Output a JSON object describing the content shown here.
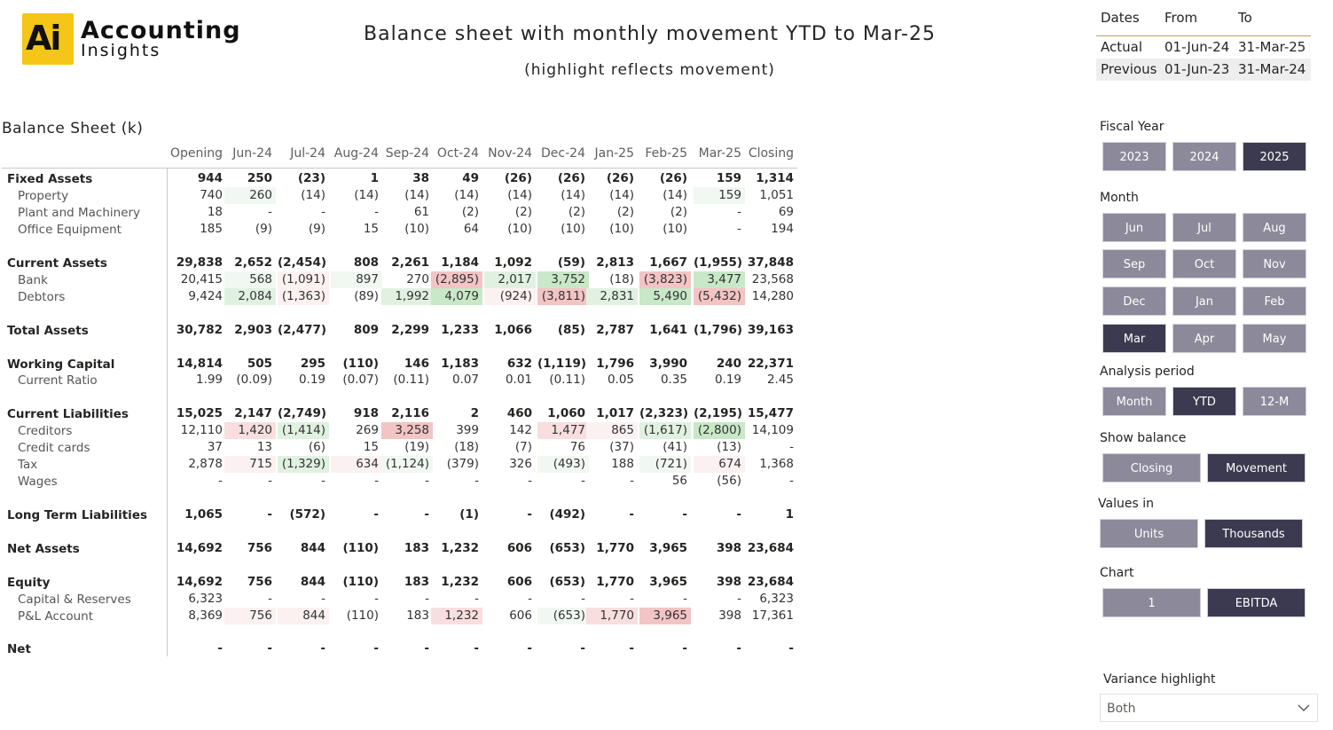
{
  "logo": {
    "mark": "Ai",
    "line1": "Accounting",
    "line2": "Insights"
  },
  "title": "Balance sheet with monthly movement YTD to Mar-25",
  "subtitle": "(highlight reflects movement)",
  "dates": {
    "headers": [
      "Dates",
      "From",
      "To"
    ],
    "rows": [
      [
        "Actual",
        "01-Jun-24",
        "31-Mar-25"
      ],
      [
        "Previous",
        "01-Jun-23",
        "31-Mar-24"
      ]
    ]
  },
  "balance_sheet": {
    "title": "Balance Sheet (k)",
    "columns": [
      "Opening",
      "Jun-24",
      "Jul-24",
      "Aug-24",
      "Sep-24",
      "Oct-24",
      "Nov-24",
      "Dec-24",
      "Jan-25",
      "Feb-25",
      "Mar-25",
      "Closing"
    ],
    "colors": {
      "g1": "#f1f8f1",
      "g2": "#e1f1e1",
      "g3": "#c8e8c8",
      "r1": "#fcf1f1",
      "r2": "#f8dede",
      "r3": "#f3c4c4"
    },
    "rows": [
      {
        "label": "Fixed Assets",
        "bold": true,
        "values": [
          "944",
          "250",
          "(23)",
          "1",
          "38",
          "49",
          "(26)",
          "(26)",
          "(26)",
          "(26)",
          "159",
          "1,314"
        ]
      },
      {
        "label": "Property",
        "values": [
          "740",
          "260",
          "(14)",
          "(14)",
          "(14)",
          "(14)",
          "(14)",
          "(14)",
          "(14)",
          "(14)",
          "159",
          "1,051"
        ],
        "hl": [
          "",
          "g1",
          "",
          "",
          "",
          "",
          "",
          "",
          "",
          "",
          "g1",
          ""
        ]
      },
      {
        "label": "Plant and Machinery",
        "values": [
          "18",
          "-",
          "-",
          "-",
          "61",
          "(2)",
          "(2)",
          "(2)",
          "(2)",
          "(2)",
          "-",
          "69"
        ]
      },
      {
        "label": "Office Equipment",
        "values": [
          "185",
          "(9)",
          "(9)",
          "15",
          "(10)",
          "64",
          "(10)",
          "(10)",
          "(10)",
          "(10)",
          "-",
          "194"
        ]
      },
      {
        "label": "Current Assets",
        "bold": true,
        "values": [
          "29,838",
          "2,652",
          "(2,454)",
          "808",
          "2,261",
          "1,184",
          "1,092",
          "(59)",
          "2,813",
          "1,667",
          "(1,955)",
          "37,848"
        ]
      },
      {
        "label": "Bank",
        "values": [
          "20,415",
          "568",
          "(1,091)",
          "897",
          "270",
          "(2,895)",
          "2,017",
          "3,752",
          "(18)",
          "(3,823)",
          "3,477",
          "23,568"
        ],
        "hl": [
          "",
          "g1",
          "r1",
          "g1",
          "",
          "r3",
          "g2",
          "g3",
          "",
          "r3",
          "g3",
          ""
        ]
      },
      {
        "label": "Debtors",
        "values": [
          "9,424",
          "2,084",
          "(1,363)",
          "(89)",
          "1,992",
          "4,079",
          "(924)",
          "(3,811)",
          "2,831",
          "5,490",
          "(5,432)",
          "14,280"
        ],
        "hl": [
          "",
          "g2",
          "r1",
          "",
          "g2",
          "g3",
          "r1",
          "r3",
          "g2",
          "g3",
          "r3",
          ""
        ]
      },
      {
        "label": "Total Assets",
        "bold": true,
        "values": [
          "30,782",
          "2,903",
          "(2,477)",
          "809",
          "2,299",
          "1,233",
          "1,066",
          "(85)",
          "2,787",
          "1,641",
          "(1,796)",
          "39,163"
        ]
      },
      {
        "label": "Working Capital",
        "bold": true,
        "values": [
          "14,814",
          "505",
          "295",
          "(110)",
          "146",
          "1,183",
          "632",
          "(1,119)",
          "1,796",
          "3,990",
          "240",
          "22,371"
        ]
      },
      {
        "label": "Current Ratio",
        "values": [
          "1.99",
          "(0.09)",
          "0.19",
          "(0.07)",
          "(0.11)",
          "0.07",
          "0.01",
          "(0.11)",
          "0.05",
          "0.35",
          "0.19",
          "2.45"
        ]
      },
      {
        "label": "Current Liabilities",
        "bold": true,
        "values": [
          "15,025",
          "2,147",
          "(2,749)",
          "918",
          "2,116",
          "2",
          "460",
          "1,060",
          "1,017",
          "(2,323)",
          "(2,195)",
          "15,477"
        ]
      },
      {
        "label": "Creditors",
        "values": [
          "12,110",
          "1,420",
          "(1,414)",
          "269",
          "3,258",
          "399",
          "142",
          "1,477",
          "865",
          "(1,617)",
          "(2,800)",
          "14,109"
        ],
        "hl": [
          "",
          "r2",
          "g2",
          "",
          "r3",
          "",
          "",
          "r2",
          "r1",
          "g2",
          "g3",
          ""
        ]
      },
      {
        "label": "Credit cards",
        "values": [
          "37",
          "13",
          "(6)",
          "15",
          "(19)",
          "(18)",
          "(7)",
          "76",
          "(37)",
          "(41)",
          "(13)",
          "-"
        ]
      },
      {
        "label": "Tax",
        "values": [
          "2,878",
          "715",
          "(1,329)",
          "634",
          "(1,124)",
          "(379)",
          "326",
          "(493)",
          "188",
          "(721)",
          "674",
          "1,368"
        ],
        "hl": [
          "",
          "r1",
          "g2",
          "r1",
          "g1",
          "",
          "",
          "g1",
          "",
          "g1",
          "r1",
          ""
        ]
      },
      {
        "label": "Wages",
        "values": [
          "-",
          "-",
          "-",
          "-",
          "-",
          "-",
          "-",
          "-",
          "-",
          "56",
          "(56)",
          "-"
        ]
      },
      {
        "label": "Long Term Liabilities",
        "bold": true,
        "values": [
          "1,065",
          "-",
          "(572)",
          "-",
          "-",
          "(1)",
          "-",
          "(492)",
          "-",
          "-",
          "-",
          "1"
        ]
      },
      {
        "label": "Net Assets",
        "bold": true,
        "values": [
          "14,692",
          "756",
          "844",
          "(110)",
          "183",
          "1,232",
          "606",
          "(653)",
          "1,770",
          "3,965",
          "398",
          "23,684"
        ]
      },
      {
        "label": "Equity",
        "bold": true,
        "values": [
          "14,692",
          "756",
          "844",
          "(110)",
          "183",
          "1,232",
          "606",
          "(653)",
          "1,770",
          "3,965",
          "398",
          "23,684"
        ]
      },
      {
        "label": "Capital & Reserves",
        "values": [
          "6,323",
          "-",
          "-",
          "-",
          "-",
          "-",
          "-",
          "-",
          "-",
          "-",
          "-",
          "6,323"
        ]
      },
      {
        "label": "P&L Account",
        "values": [
          "8,369",
          "756",
          "844",
          "(110)",
          "183",
          "1,232",
          "606",
          "(653)",
          "1,770",
          "3,965",
          "398",
          "17,361"
        ],
        "hl": [
          "",
          "r1",
          "r1",
          "",
          "",
          "r2",
          "",
          "g1",
          "r2",
          "r3",
          "",
          ""
        ]
      },
      {
        "label": "Net",
        "bold": true,
        "values": [
          "-",
          "-",
          "-",
          "-",
          "-",
          "-",
          "-",
          "-",
          "-",
          "-",
          "-",
          "-"
        ]
      }
    ]
  },
  "slicers": {
    "fiscal_year": {
      "title": "Fiscal Year",
      "options": [
        "2023",
        "2024",
        "2025"
      ],
      "selected": "2025"
    },
    "month": {
      "title": "Month",
      "options": [
        "Jun",
        "Jul",
        "Aug",
        "Sep",
        "Oct",
        "Nov",
        "Dec",
        "Jan",
        "Feb",
        "Mar",
        "Apr",
        "May"
      ],
      "selected": "Mar"
    },
    "analysis_period": {
      "title": "Analysis period",
      "options": [
        "Month",
        "YTD",
        "12-M"
      ],
      "selected": "YTD"
    },
    "show_balance": {
      "title": "Show balance",
      "options": [
        "Closing",
        "Movement"
      ],
      "selected": "Movement"
    },
    "values_in": {
      "title": "Values in",
      "options": [
        "Units",
        "Thousands"
      ],
      "selected": "Thousands"
    },
    "chart": {
      "title": "Chart",
      "options": [
        "1",
        "EBITDA"
      ],
      "selected": "EBITDA"
    }
  },
  "variance_highlight": {
    "title": "Variance highlight",
    "value": "Both"
  }
}
